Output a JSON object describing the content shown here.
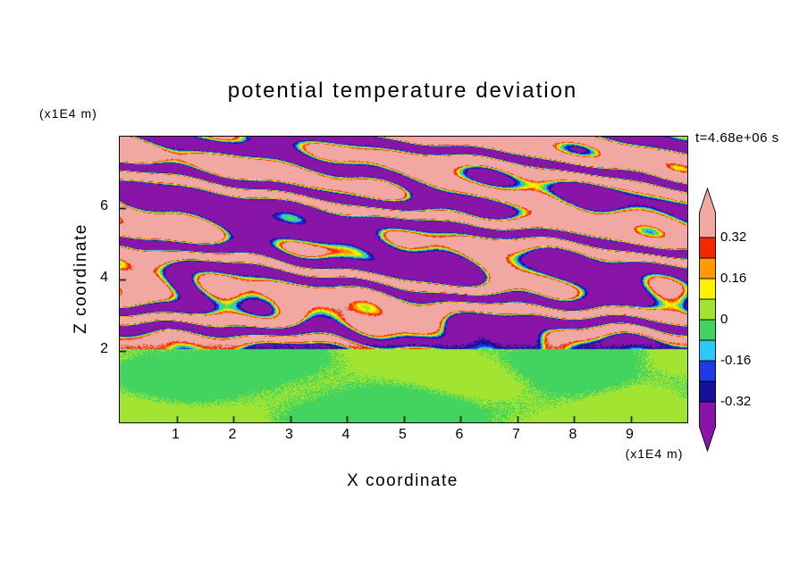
{
  "title": "potential temperature deviation",
  "time_label": "t=4.68e+06 s",
  "axes": {
    "x_label": "X coordinate",
    "y_label": "Z coordinate",
    "x_units": "(x1E4 m)",
    "y_units": "(x1E4 m)",
    "x_ticks": [
      "1",
      "2",
      "3",
      "4",
      "5",
      "6",
      "7",
      "8",
      "9"
    ],
    "y_ticks": [
      "2",
      "4",
      "6"
    ]
  },
  "colorbar": {
    "labels": [
      "0.32",
      "0.16",
      "0",
      "-0.16",
      "-0.32"
    ]
  },
  "chart_data": {
    "type": "heatmap",
    "title": "potential temperature deviation",
    "xlabel": "X coordinate",
    "ylabel": "Z coordinate",
    "x_units": "x1E4 m",
    "y_units": "x1E4 m",
    "xlim": [
      0,
      10
    ],
    "ylim": [
      0,
      8
    ],
    "x_tick_values": [
      1,
      2,
      3,
      4,
      5,
      6,
      7,
      8,
      9
    ],
    "y_tick_values": [
      2,
      4,
      6
    ],
    "time": "t=4.68e+06 s",
    "legend_position": "right-colorbar",
    "levels": [
      -0.32,
      -0.24,
      -0.16,
      -0.08,
      0,
      0.08,
      0.16,
      0.24,
      0.32
    ],
    "colorbar_labeled_levels": [
      0.32,
      0.16,
      0,
      -0.16,
      -0.32
    ],
    "colors": {
      "below_min": "#8814a8",
      "bands": [
        "#16109a",
        "#1e3ae6",
        "#2cc8fa",
        "#42d45e",
        "#a2e432",
        "#fdf200",
        "#ff9a00",
        "#f22800"
      ],
      "above_max": "#f2a8a2"
    },
    "field_summary": "Stably stratified region above z=2 (x1E4 m) filled with wavy horizontal layers alternating between deviations above +0.32 (pink) and below -0.32 (purple), separated by thin multicolored transition contours (red/orange/yellow/green/cyan/blue); layers become thinner and more turbulent toward z=2. Below z=2 a convective mixed layer with weak deviations between about -0.07 and +0.07 shown as interlocking green and yellow-green cells.",
    "field_model": {
      "interface_z": 2.05,
      "stripes": {
        "lam0": 0.33,
        "lam1": 0.085,
        "lam_mod_amp": 0.07,
        "lam_mod_kx": 0.8,
        "lam_mod_kz": 3.1,
        "phase0": 0.3,
        "psi": [
          {
            "a": 0.13,
            "kx": 1.05,
            "kz": 0.55
          },
          {
            "a": 0.085,
            "kx": 2.35,
            "kz": -1.4
          },
          {
            "a": 0.05,
            "kx": 4.7,
            "kz": 2.6
          }
        ],
        "amp_max": 0.5,
        "amp_floor": 0.6,
        "amp_ramp": 1.4,
        "sharp": 2.6,
        "noise": 0.035
      },
      "blobs": {
        "amp": 0.06,
        "off": 0.004,
        "kx": 0.95,
        "kz": 1.85,
        "wx": 0.6,
        "wz": 0.7,
        "noise": 0.012
      }
    }
  }
}
